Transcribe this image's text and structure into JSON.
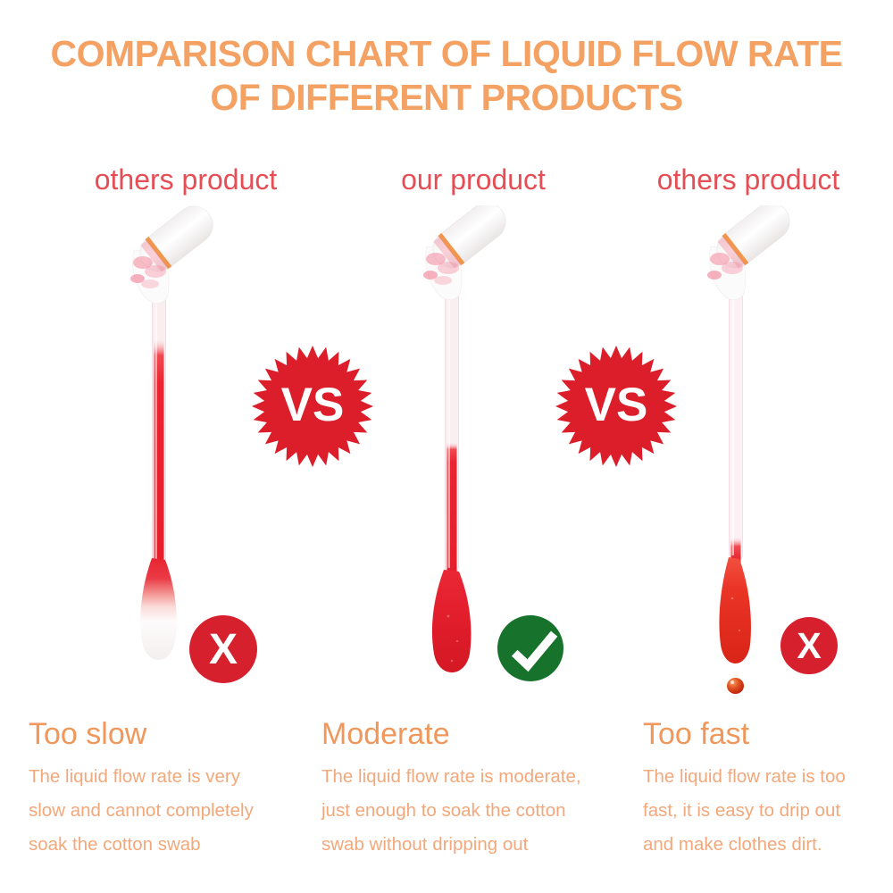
{
  "title": {
    "line1": "COMPARISON CHART OF LIQUID FLOW RATE",
    "line2": "OF DIFFERENT PRODUCTS"
  },
  "vs_label": "VS",
  "products": [
    {
      "header": "others product",
      "verdict": "reject",
      "verdict_label": "X",
      "heading": "Too slow",
      "desc_lines": [
        "The liquid flow rate is very",
        "slow and cannot completely",
        "soak the cotton swab"
      ],
      "swab": {
        "liquid_in_tube_pct": 80,
        "tip_soaked": false,
        "dripping": false
      }
    },
    {
      "header": "our product",
      "verdict": "approve",
      "heading": "Moderate",
      "desc_lines": [
        "The liquid flow rate is moderate,",
        "just enough to soak the cotton",
        "swab without dripping out"
      ],
      "swab": {
        "liquid_in_tube_pct": 45,
        "tip_soaked": true,
        "dripping": false
      }
    },
    {
      "header": "others product",
      "verdict": "reject",
      "verdict_label": "X",
      "heading": "Too fast",
      "desc_lines": [
        "The liquid flow rate is too",
        "fast, it is easy to drip out",
        "and make clothes dirt."
      ],
      "swab": {
        "liquid_in_tube_pct": 8,
        "tip_soaked": true,
        "dripping": true
      }
    }
  ],
  "colors": {
    "title_orange": "#F4A164",
    "label_red": "#E64E55",
    "heading_orange": "#F0975C",
    "body_orange": "#F3A87B",
    "vs_red": "#DC1E2B",
    "x_red": "#D7202E",
    "check_green": "#17722B",
    "liquid_red": "#E6222F"
  }
}
